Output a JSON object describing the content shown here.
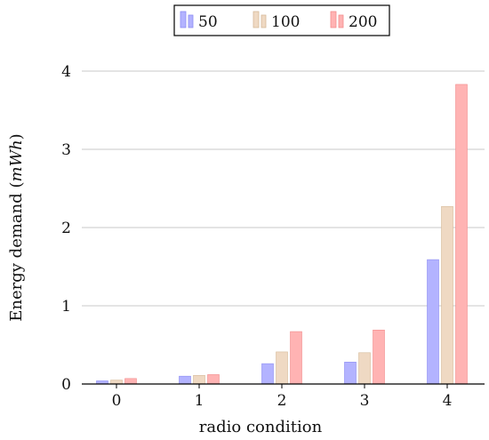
{
  "chart_data": {
    "type": "bar",
    "title": "",
    "xlabel": "radio condition",
    "ylabel_main": "Energy demand (",
    "ylabel_unit": "mWh",
    "ylabel_close": ")",
    "categories": [
      "0",
      "1",
      "2",
      "3",
      "4"
    ],
    "ylim": [
      0,
      4
    ],
    "yticks": [
      0,
      1,
      2,
      3,
      4
    ],
    "grid": true,
    "legend_position": "top-center",
    "series": [
      {
        "name": "50",
        "color": "#b3b3ff",
        "edge": "#8c8cf2",
        "values": [
          0.04,
          0.1,
          0.26,
          0.28,
          1.59
        ]
      },
      {
        "name": "100",
        "color": "#efd9c3",
        "edge": "#d6b998",
        "values": [
          0.05,
          0.11,
          0.41,
          0.4,
          2.27
        ]
      },
      {
        "name": "200",
        "color": "#ffb3b3",
        "edge": "#f28c8c",
        "values": [
          0.07,
          0.12,
          0.67,
          0.69,
          3.83
        ]
      }
    ]
  }
}
